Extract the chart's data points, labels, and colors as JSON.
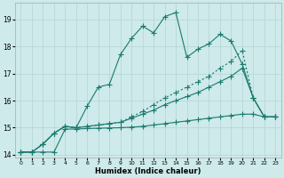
{
  "xlabel": "Humidex (Indice chaleur)",
  "background_color": "#ceeaea",
  "grid_color": "#b8d8d8",
  "line_color": "#1a7a6e",
  "xlim": [
    -0.5,
    23.5
  ],
  "ylim": [
    13.9,
    19.6
  ],
  "yticks": [
    14,
    15,
    16,
    17,
    18,
    19
  ],
  "xticks": [
    0,
    1,
    2,
    3,
    4,
    5,
    6,
    7,
    8,
    9,
    10,
    11,
    12,
    13,
    14,
    15,
    16,
    17,
    18,
    19,
    20,
    21,
    22,
    23
  ],
  "line1_x": [
    0,
    1,
    2,
    3,
    4,
    5,
    6,
    7,
    8,
    9,
    10,
    11,
    12,
    13,
    14,
    15,
    16,
    17,
    18,
    19,
    20,
    21,
    22,
    23
  ],
  "line1_y": [
    14.1,
    14.1,
    14.4,
    14.8,
    15.05,
    15.0,
    15.8,
    16.5,
    16.6,
    17.7,
    18.3,
    18.75,
    18.5,
    19.1,
    19.25,
    17.6,
    17.9,
    18.1,
    18.45,
    18.2,
    17.35,
    16.1,
    15.4,
    15.4
  ],
  "line2_x": [
    0,
    1,
    2,
    3,
    4,
    5,
    6,
    7,
    8,
    9,
    10,
    11,
    12,
    13,
    14,
    15,
    16,
    17,
    18,
    19,
    20,
    21,
    22,
    23
  ],
  "line2_y": [
    14.1,
    14.1,
    14.4,
    14.8,
    15.05,
    15.0,
    15.05,
    15.1,
    15.15,
    15.2,
    15.4,
    15.6,
    15.85,
    16.1,
    16.3,
    16.5,
    16.7,
    16.9,
    17.2,
    17.45,
    17.85,
    16.1,
    15.4,
    15.4
  ],
  "line3_x": [
    0,
    1,
    2,
    3,
    4,
    5,
    6,
    7,
    8,
    9,
    10,
    11,
    12,
    13,
    14,
    15,
    16,
    17,
    18,
    19,
    20,
    21,
    22,
    23
  ],
  "line3_y": [
    14.1,
    14.1,
    14.4,
    14.8,
    15.05,
    15.0,
    15.05,
    15.1,
    15.15,
    15.2,
    15.35,
    15.5,
    15.65,
    15.85,
    16.0,
    16.15,
    16.3,
    16.5,
    16.7,
    16.9,
    17.2,
    16.1,
    15.4,
    15.4
  ],
  "line4_x": [
    0,
    1,
    2,
    3,
    4,
    5,
    6,
    7,
    8,
    9,
    10,
    11,
    12,
    13,
    14,
    15,
    16,
    17,
    18,
    19,
    20,
    21,
    22,
    23
  ],
  "line4_y": [
    14.1,
    14.1,
    14.1,
    14.1,
    14.95,
    14.95,
    14.97,
    14.98,
    14.99,
    15.0,
    15.02,
    15.05,
    15.1,
    15.15,
    15.2,
    15.25,
    15.3,
    15.35,
    15.4,
    15.45,
    15.5,
    15.5,
    15.4,
    15.4
  ]
}
